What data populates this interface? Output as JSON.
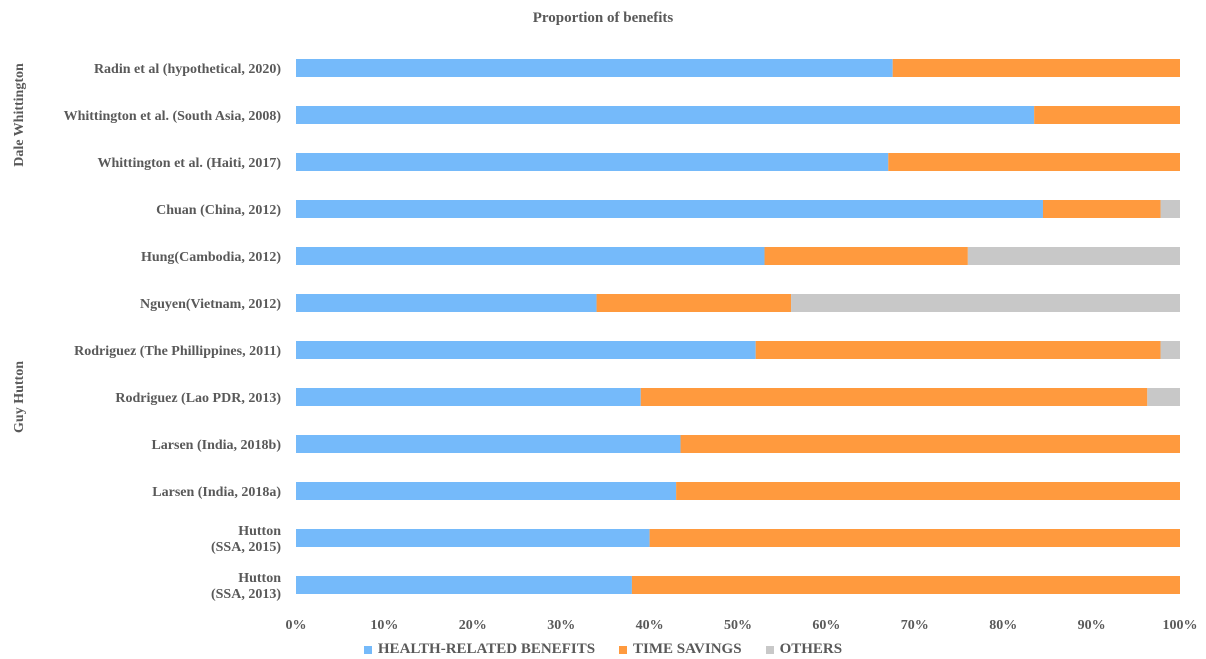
{
  "chart_data": {
    "type": "bar",
    "orientation": "horizontal",
    "stacked": "percent",
    "title": "Proportion of benefits",
    "xlabel": "",
    "ylabel": "",
    "xlim": [
      0,
      100
    ],
    "x_ticks": [
      "0%",
      "10%",
      "20%",
      "30%",
      "40%",
      "50%",
      "60%",
      "70%",
      "80%",
      "90%",
      "100%"
    ],
    "categories": [
      "Radin et al (hypothetical, 2020)",
      "Whittington et al. (South Asia, 2008)",
      "Whittington et al. (Haiti, 2017)",
      "Chuan (China, 2012)",
      "Hung(Cambodia, 2012)",
      "Nguyen(Vietnam, 2012)",
      "Rodriguez (The Phillippines, 2011)",
      "Rodriguez (Lao PDR, 2013)",
      "Larsen (India, 2018b)",
      "Larsen (India, 2018a)",
      "Hutton\n(SSA, 2015)",
      "Hutton\n(SSA, 2013)"
    ],
    "groups": [
      {
        "label": "Dale Whittington",
        "from": 0,
        "to": 2
      },
      {
        "label": "Guy Hutton",
        "from": 3,
        "to": 11
      }
    ],
    "series": [
      {
        "name": "HEALTH-RELATED BENEFITS",
        "color": "#75BAFA",
        "values": [
          67.5,
          83.5,
          67,
          84.5,
          53,
          34,
          52,
          39,
          43.5,
          43,
          40,
          38
        ]
      },
      {
        "name": "TIME SAVINGS",
        "color": "#FF9A3E",
        "values": [
          32.5,
          16.5,
          33,
          13.3,
          23,
          22,
          45.8,
          57.3,
          56.5,
          57,
          60,
          62
        ]
      },
      {
        "name": "OTHERS",
        "color": "#C8C8C8",
        "values": [
          0,
          0,
          0,
          2.2,
          24,
          44,
          2.2,
          3.7,
          0,
          0,
          0,
          0
        ]
      }
    ],
    "legend_position": "bottom",
    "grid": false
  }
}
